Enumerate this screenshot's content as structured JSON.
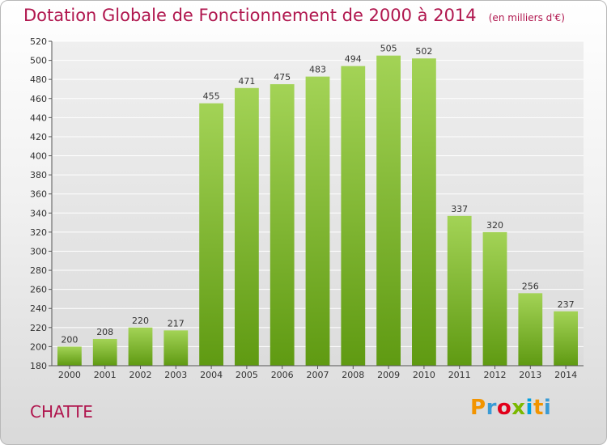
{
  "place": "CHATTE",
  "logo": {
    "text": "Proxiti"
  },
  "colors": {
    "bar_top": "#a3d356",
    "bar_bottom": "#5f9a12",
    "title": "#b0164e",
    "grid": "#ffffff",
    "plot_bg": "#e0e0e0"
  },
  "chart_data": {
    "type": "bar",
    "title": "Dotation Globale de Fonctionnement de 2000 à 2014",
    "subtitle": "(en milliers d'€)",
    "categories": [
      "2000",
      "2001",
      "2002",
      "2003",
      "2004",
      "2005",
      "2006",
      "2007",
      "2008",
      "2009",
      "2010",
      "2011",
      "2012",
      "2013",
      "2014"
    ],
    "values": [
      200,
      208,
      220,
      217,
      455,
      471,
      475,
      483,
      494,
      505,
      502,
      337,
      320,
      256,
      237
    ],
    "ylim": [
      180,
      520
    ],
    "yticks": [
      180,
      200,
      220,
      240,
      260,
      280,
      300,
      320,
      340,
      360,
      380,
      400,
      420,
      440,
      460,
      480,
      500,
      520
    ],
    "grid": true
  }
}
